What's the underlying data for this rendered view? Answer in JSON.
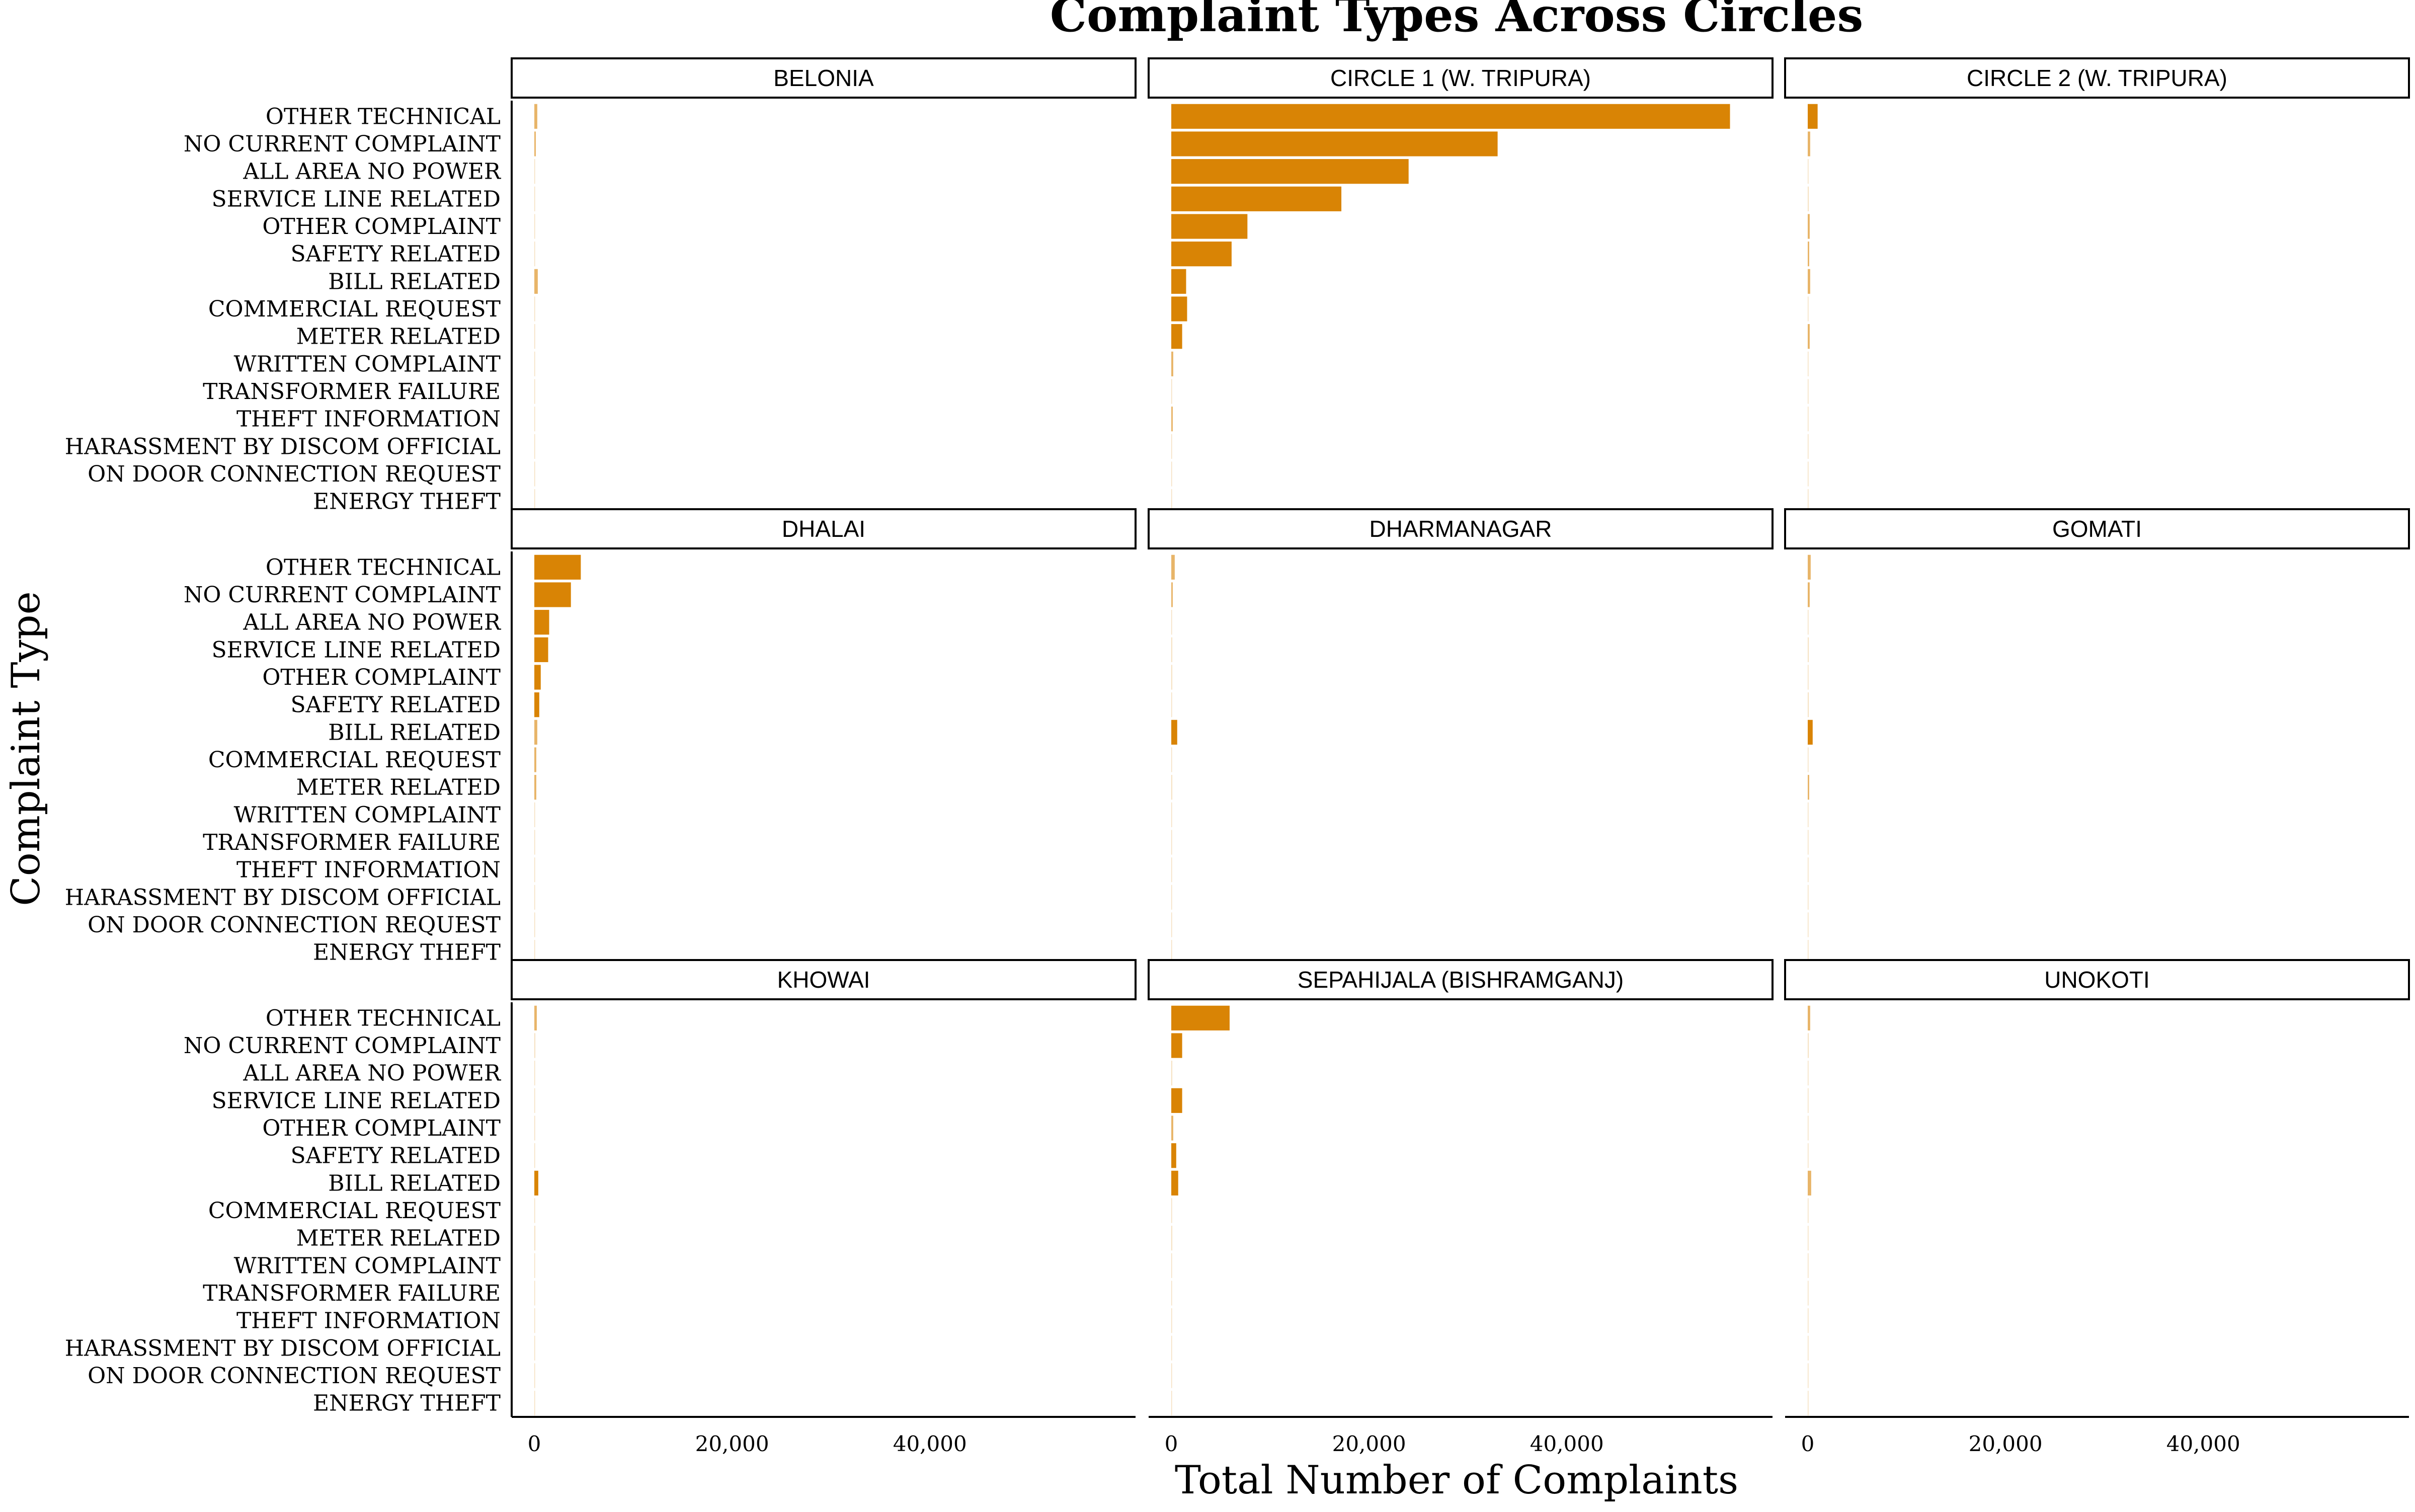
{
  "chart_data": {
    "type": "bar",
    "orientation": "horizontal",
    "title": "Complaint Types Across Circles",
    "xlabel": "Total Number of Complaints",
    "ylabel": "Complaint Type",
    "xlim": [
      0,
      58000
    ],
    "xticks": [
      0,
      20000,
      40000
    ],
    "xtick_labels": [
      "0",
      "20,000",
      "40,000"
    ],
    "bar_color": "#D98405",
    "categories": [
      "OTHER TECHNICAL",
      "NO CURRENT COMPLAINT",
      "ALL AREA NO POWER",
      "SERVICE LINE RELATED",
      "OTHER COMPLAINT",
      "SAFETY RELATED",
      "BILL RELATED",
      "COMMERCIAL REQUEST",
      "METER RELATED",
      "WRITTEN COMPLAINT",
      "TRANSFORMER FAILURE",
      "THEFT INFORMATION",
      "HARASSMENT BY DISCOM OFFICIAL",
      "ON DOOR CONNECTION REQUEST",
      "ENERGY THEFT"
    ],
    "panels": [
      {
        "name": "BELONIA",
        "values": [
          300,
          150,
          60,
          40,
          40,
          30,
          350,
          20,
          80,
          5,
          5,
          3,
          1,
          1,
          1
        ]
      },
      {
        "name": "CIRCLE 1 (W. TRIPURA)",
        "values": [
          56500,
          33000,
          24000,
          17200,
          7700,
          6100,
          1500,
          1600,
          1100,
          200,
          80,
          150,
          30,
          20,
          10
        ]
      },
      {
        "name": "CIRCLE 2 (W. TRIPURA)",
        "values": [
          1000,
          250,
          50,
          100,
          200,
          150,
          250,
          30,
          200,
          10,
          5,
          5,
          2,
          1,
          1
        ]
      },
      {
        "name": "DHALAI",
        "values": [
          4700,
          3700,
          1500,
          1400,
          650,
          500,
          300,
          200,
          200,
          50,
          20,
          10,
          5,
          2,
          1
        ]
      },
      {
        "name": "DHARMANAGAR",
        "values": [
          350,
          150,
          50,
          100,
          100,
          80,
          600,
          50,
          100,
          20,
          10,
          5,
          2,
          1,
          1
        ]
      },
      {
        "name": "GOMATI",
        "values": [
          300,
          200,
          40,
          100,
          80,
          100,
          500,
          50,
          150,
          10,
          5,
          5,
          1,
          1,
          1
        ]
      },
      {
        "name": "KHOWAI",
        "values": [
          250,
          100,
          40,
          60,
          80,
          60,
          400,
          30,
          100,
          10,
          5,
          3,
          1,
          1,
          1
        ]
      },
      {
        "name": "SEPAHIJALA (BISHRAMGANJ)",
        "values": [
          5900,
          1100,
          100,
          1100,
          200,
          500,
          700,
          80,
          100,
          30,
          10,
          80,
          5,
          2,
          1
        ]
      },
      {
        "name": "UNOKOTI",
        "values": [
          250,
          100,
          30,
          40,
          50,
          40,
          350,
          20,
          50,
          5,
          3,
          2,
          1,
          1,
          1
        ]
      }
    ]
  }
}
